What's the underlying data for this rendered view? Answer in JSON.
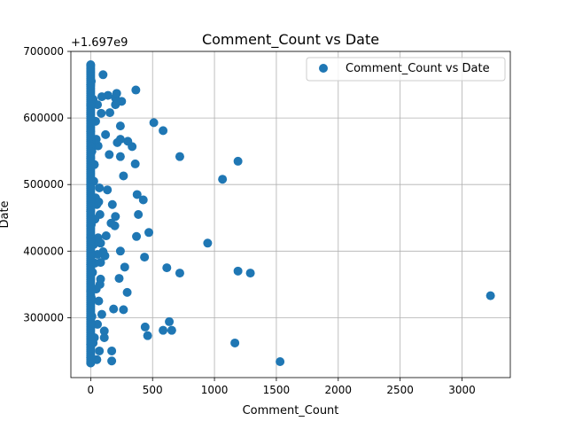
{
  "chart_data": {
    "type": "scatter",
    "title": "Comment_Count vs Date",
    "xlabel": "Comment_Count",
    "ylabel": "Date",
    "offset_label": "+1.697e9",
    "xlim": [
      -160,
      3390
    ],
    "ylim": [
      210000,
      700000
    ],
    "x_ticks": [
      0,
      500,
      1000,
      1500,
      2000,
      2500,
      3000
    ],
    "y_ticks": [
      300000,
      400000,
      500000,
      600000,
      700000
    ],
    "x_tick_labels": [
      "0",
      "500",
      "1000",
      "1500",
      "2000",
      "2500",
      "3000"
    ],
    "y_tick_labels": [
      "300000",
      "400000",
      "500000",
      "600000",
      "700000"
    ],
    "grid": true,
    "legend": {
      "position": "top-right"
    },
    "marker_color": "#1f77b4",
    "series": [
      {
        "name": "Comment_Count vs Date",
        "x": [
          3230,
          1530,
          1290,
          1190,
          1165,
          1190,
          1065,
          945,
          720,
          720,
          635,
          615,
          655,
          585,
          585,
          510,
          470,
          460,
          440,
          435,
          425,
          385,
          375,
          365,
          370,
          360,
          335,
          300,
          295,
          275,
          265,
          265,
          240,
          240,
          240,
          230,
          215,
          200,
          200,
          200,
          210,
          250,
          240,
          195,
          185,
          175,
          170,
          170,
          165,
          155,
          150,
          135,
          140,
          125,
          120,
          115,
          110,
          110,
          100,
          100,
          90,
          90,
          85,
          80,
          80,
          80,
          75,
          75,
          70,
          70,
          65,
          65,
          60,
          60,
          55,
          55,
          55,
          50,
          50,
          45,
          45,
          40,
          40,
          35,
          35,
          30,
          30,
          25,
          25,
          20,
          20,
          15,
          15,
          10,
          10,
          5,
          5,
          5,
          0,
          0,
          0,
          0,
          0,
          0,
          0,
          0,
          0,
          0,
          0,
          0,
          0,
          0
        ],
        "y": [
          333000,
          234000,
          367000,
          370000,
          262000,
          535000,
          508000,
          412000,
          542000,
          367000,
          294000,
          375000,
          281000,
          581000,
          281000,
          593000,
          428000,
          273000,
          286000,
          391000,
          477000,
          455000,
          485000,
          642000,
          422000,
          531000,
          557000,
          565000,
          338000,
          376000,
          312000,
          513000,
          568000,
          588000,
          542000,
          359000,
          563000,
          630000,
          620000,
          452000,
          637000,
          625000,
          400000,
          438000,
          313000,
          470000,
          235000,
          250000,
          442000,
          608000,
          545000,
          492000,
          634000,
          423000,
          575000,
          393000,
          280000,
          270000,
          399000,
          665000,
          305000,
          632000,
          607000,
          412000,
          383000,
          358000,
          455000,
          350000,
          495000,
          250000,
          474000,
          325000,
          558000,
          420000,
          620000,
          395000,
          290000,
          470000,
          237000,
          568000,
          343000,
          595000,
          480000,
          448000,
          382000,
          530000,
          270000,
          505000,
          410000,
          262000,
          628000,
          368000,
          470000,
          302000,
          550000,
          655000,
          440000,
          330000,
          680000,
          650000,
          620000,
          580000,
          540000,
          500000,
          460000,
          420000,
          380000,
          340000,
          300000,
          260000,
          240000,
          232000
        ]
      }
    ]
  }
}
